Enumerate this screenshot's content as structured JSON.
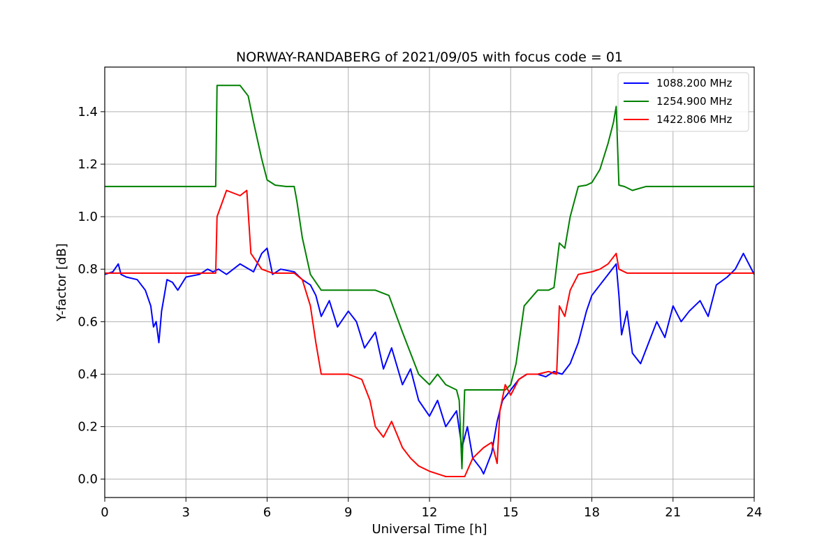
{
  "chart_data": {
    "type": "line",
    "title": "NORWAY-RANDABERG of 2021/09/05 with focus code = 01",
    "xlabel": "Universal Time [h]",
    "ylabel": "Y-factor [dB]",
    "xlim": [
      0,
      24
    ],
    "ylim": [
      -0.07,
      1.57
    ],
    "xticks": [
      "0",
      "3",
      "6",
      "9",
      "12",
      "15",
      "18",
      "21",
      "24"
    ],
    "yticks": [
      "0.0",
      "0.2",
      "0.4",
      "0.6",
      "0.8",
      "1.0",
      "1.2",
      "1.4"
    ],
    "grid": true,
    "legend_position": "top-right",
    "series": [
      {
        "name": "1088.200 MHz",
        "color": "#0000ff",
        "x": [
          0,
          0.3,
          0.5,
          0.6,
          0.8,
          1.2,
          1.5,
          1.7,
          1.8,
          1.9,
          2.0,
          2.1,
          2.2,
          2.3,
          2.5,
          2.7,
          3.0,
          3.5,
          3.8,
          4.0,
          4.2,
          4.5,
          5.0,
          5.5,
          5.8,
          6.0,
          6.2,
          6.5,
          7.0,
          7.3,
          7.6,
          7.8,
          8.0,
          8.3,
          8.6,
          9.0,
          9.3,
          9.6,
          10.0,
          10.3,
          10.6,
          11.0,
          11.3,
          11.6,
          12.0,
          12.3,
          12.6,
          13.0,
          13.2,
          13.4,
          13.6,
          13.9,
          14.0,
          14.3,
          14.5,
          14.7,
          15.0,
          15.3,
          15.6,
          16.0,
          16.3,
          16.6,
          16.9,
          17.2,
          17.5,
          17.8,
          18.0,
          18.3,
          18.6,
          18.9,
          19.0,
          19.1,
          19.3,
          19.5,
          19.8,
          20.1,
          20.4,
          20.7,
          21.0,
          21.3,
          21.6,
          22.0,
          22.3,
          22.6,
          23.0,
          23.3,
          23.6,
          24.0
        ],
        "values": [
          0.78,
          0.79,
          0.82,
          0.78,
          0.77,
          0.76,
          0.72,
          0.66,
          0.58,
          0.6,
          0.52,
          0.64,
          0.7,
          0.76,
          0.75,
          0.72,
          0.77,
          0.78,
          0.8,
          0.79,
          0.8,
          0.78,
          0.82,
          0.79,
          0.86,
          0.88,
          0.78,
          0.8,
          0.79,
          0.76,
          0.74,
          0.7,
          0.62,
          0.68,
          0.58,
          0.64,
          0.6,
          0.5,
          0.56,
          0.42,
          0.5,
          0.36,
          0.42,
          0.3,
          0.24,
          0.3,
          0.2,
          0.26,
          0.12,
          0.2,
          0.08,
          0.04,
          0.02,
          0.1,
          0.22,
          0.3,
          0.34,
          0.38,
          0.4,
          0.4,
          0.39,
          0.41,
          0.4,
          0.44,
          0.52,
          0.64,
          0.7,
          0.74,
          0.78,
          0.82,
          0.7,
          0.55,
          0.64,
          0.48,
          0.44,
          0.52,
          0.6,
          0.54,
          0.66,
          0.6,
          0.64,
          0.68,
          0.62,
          0.74,
          0.77,
          0.8,
          0.86,
          0.78
        ]
      },
      {
        "name": "1254.900 MHz",
        "color": "#008000",
        "x": [
          0,
          1.5,
          3.0,
          4.1,
          4.15,
          4.5,
          5.0,
          5.3,
          5.5,
          5.8,
          6.0,
          6.3,
          6.7,
          7.0,
          7.1,
          7.3,
          7.6,
          8.0,
          8.3,
          8.6,
          9.0,
          9.5,
          10.0,
          10.5,
          11.0,
          11.3,
          11.6,
          12.0,
          12.3,
          12.6,
          13.0,
          13.1,
          13.2,
          13.3,
          13.5,
          14.0,
          14.5,
          14.8,
          15.0,
          15.2,
          15.5,
          16.0,
          16.4,
          16.6,
          16.8,
          17.0,
          17.2,
          17.5,
          17.8,
          18.0,
          18.3,
          18.6,
          18.8,
          18.9,
          19.0,
          19.2,
          19.5,
          20.0,
          21.0,
          22.0,
          23.0,
          24.0
        ],
        "values": [
          1.115,
          1.115,
          1.115,
          1.115,
          1.5,
          1.5,
          1.5,
          1.46,
          1.36,
          1.22,
          1.14,
          1.12,
          1.115,
          1.115,
          1.06,
          0.92,
          0.78,
          0.72,
          0.72,
          0.72,
          0.72,
          0.72,
          0.72,
          0.7,
          0.56,
          0.48,
          0.4,
          0.36,
          0.4,
          0.36,
          0.34,
          0.3,
          0.04,
          0.34,
          0.34,
          0.34,
          0.34,
          0.34,
          0.36,
          0.44,
          0.66,
          0.72,
          0.72,
          0.73,
          0.9,
          0.88,
          1.0,
          1.115,
          1.12,
          1.13,
          1.18,
          1.28,
          1.36,
          1.42,
          1.12,
          1.115,
          1.1,
          1.115,
          1.115,
          1.115,
          1.115,
          1.115
        ]
      },
      {
        "name": "1422.806 MHz",
        "color": "#ff0000",
        "x": [
          0,
          1.5,
          3.0,
          4.1,
          4.15,
          4.5,
          5.0,
          5.25,
          5.4,
          5.8,
          6.2,
          7.0,
          7.3,
          7.6,
          7.8,
          8.0,
          8.5,
          9.0,
          9.5,
          9.8,
          10.0,
          10.3,
          10.6,
          11.0,
          11.3,
          11.6,
          12.0,
          12.3,
          12.6,
          13.0,
          13.3,
          13.6,
          14.0,
          14.3,
          14.5,
          14.6,
          14.8,
          15.0,
          15.3,
          15.6,
          16.0,
          16.4,
          16.7,
          16.8,
          17.0,
          17.2,
          17.5,
          18.0,
          18.3,
          18.6,
          18.9,
          19.0,
          19.3,
          20.0,
          21.0,
          22.0,
          23.0,
          24.0
        ],
        "values": [
          0.785,
          0.785,
          0.785,
          0.785,
          1.0,
          1.1,
          1.08,
          1.1,
          0.86,
          0.8,
          0.785,
          0.785,
          0.76,
          0.66,
          0.52,
          0.4,
          0.4,
          0.4,
          0.38,
          0.3,
          0.2,
          0.16,
          0.22,
          0.12,
          0.08,
          0.05,
          0.03,
          0.02,
          0.01,
          0.01,
          0.01,
          0.08,
          0.12,
          0.14,
          0.06,
          0.26,
          0.36,
          0.32,
          0.38,
          0.4,
          0.4,
          0.41,
          0.4,
          0.66,
          0.62,
          0.72,
          0.78,
          0.79,
          0.8,
          0.82,
          0.86,
          0.8,
          0.785,
          0.785,
          0.785,
          0.785,
          0.785,
          0.785
        ]
      }
    ]
  }
}
